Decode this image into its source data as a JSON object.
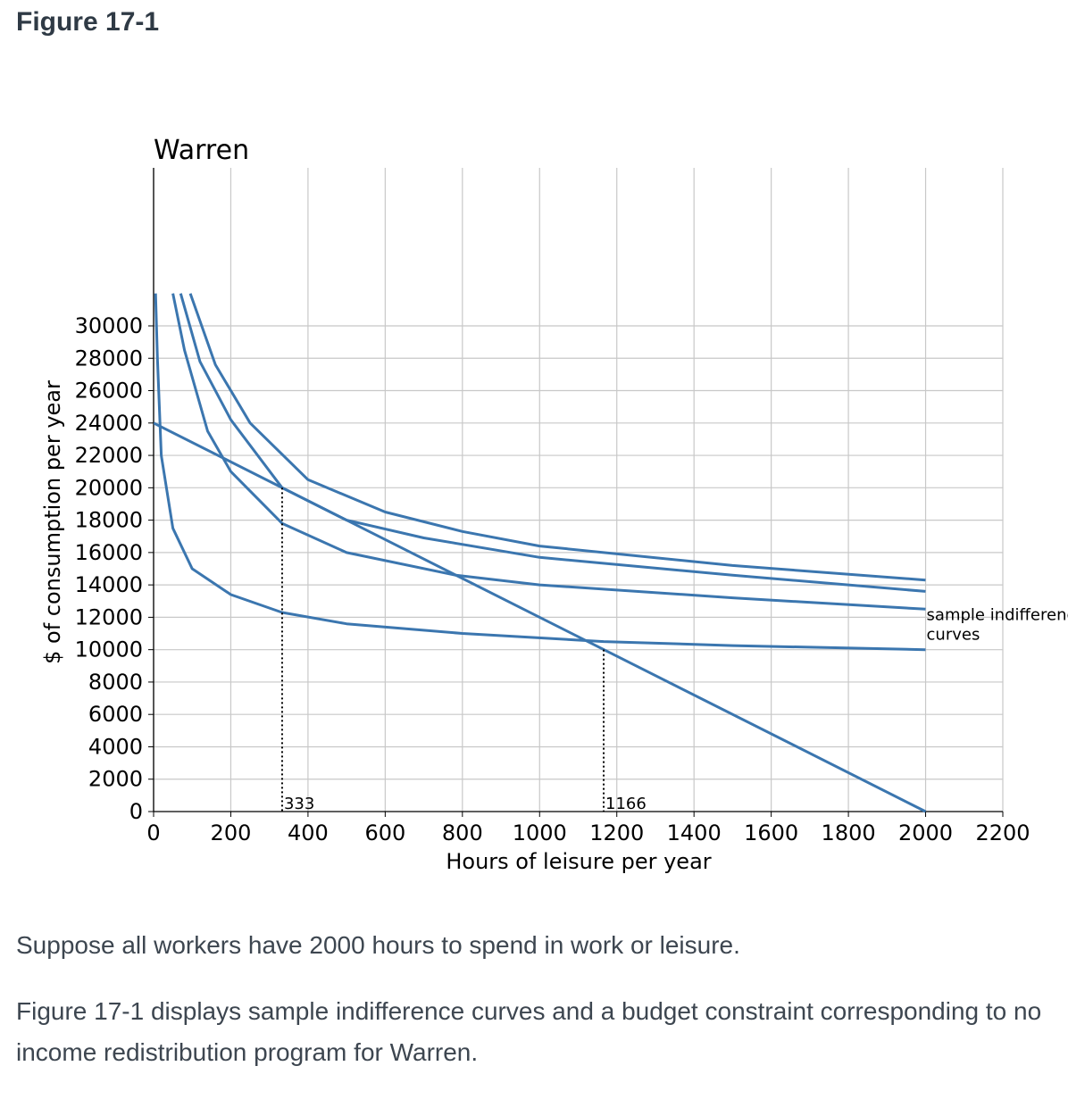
{
  "figure_title": "Figure 17-1",
  "paragraphs": [
    "Suppose all workers have 2000 hours to spend in work or leisure.",
    "Figure 17-1 displays sample indifference curves and a budget constraint corresponding to no income redistribution program for Warren."
  ],
  "colors": {
    "line": "#3b76af",
    "grid": "#c8c8c8",
    "axis": "#000000"
  },
  "chart_data": {
    "type": "line",
    "title": "Warren",
    "xlabel": "Hours of leisure per year",
    "ylabel": "$ of consumption per year",
    "xlim": [
      0,
      2200
    ],
    "ylim": [
      0,
      32000
    ],
    "xticks": [
      0,
      200,
      400,
      600,
      800,
      1000,
      1200,
      1400,
      1600,
      1800,
      2000,
      2200
    ],
    "yticks": [
      0,
      2000,
      4000,
      6000,
      8000,
      10000,
      12000,
      14000,
      16000,
      18000,
      20000,
      22000,
      24000,
      26000,
      28000,
      30000
    ],
    "grid": true,
    "budget_constraint": {
      "x": [
        0,
        2000
      ],
      "y": [
        24000,
        0
      ]
    },
    "indifference_curves": [
      {
        "min_x": 5,
        "points": [
          [
            5,
            32000
          ],
          [
            10,
            28000
          ],
          [
            20,
            22000
          ],
          [
            50,
            17500
          ],
          [
            100,
            15000
          ],
          [
            200,
            13400
          ],
          [
            333,
            12300
          ],
          [
            500,
            11600
          ],
          [
            800,
            11000
          ],
          [
            1166,
            10500
          ],
          [
            1500,
            10250
          ],
          [
            2000,
            10000
          ]
        ]
      },
      {
        "min_x": 50,
        "points": [
          [
            50,
            32000
          ],
          [
            80,
            28500
          ],
          [
            140,
            23500
          ],
          [
            200,
            21000
          ],
          [
            333,
            17800
          ],
          [
            500,
            16000
          ],
          [
            783,
            14600
          ],
          [
            1000,
            14000
          ],
          [
            1500,
            13200
          ],
          [
            2000,
            12500
          ]
        ]
      },
      {
        "min_x": 70,
        "points": [
          [
            70,
            32000
          ],
          [
            120,
            27800
          ],
          [
            200,
            24200
          ],
          [
            333,
            20000
          ],
          [
            500,
            18000
          ],
          [
            700,
            16900
          ],
          [
            1000,
            15700
          ],
          [
            1500,
            14600
          ],
          [
            2000,
            13600
          ]
        ]
      },
      {
        "min_x": 95,
        "points": [
          [
            95,
            32000
          ],
          [
            160,
            27600
          ],
          [
            250,
            24000
          ],
          [
            400,
            20500
          ],
          [
            600,
            18500
          ],
          [
            800,
            17300
          ],
          [
            1000,
            16400
          ],
          [
            1500,
            15200
          ],
          [
            2000,
            14300
          ]
        ]
      }
    ],
    "reference_lines": [
      {
        "x": 333,
        "y": 20000,
        "label": "333"
      },
      {
        "x": 1166,
        "y": 10000,
        "label": "1166"
      }
    ],
    "annotation": {
      "x": 2000,
      "y": 12500,
      "text": "sample indifference curves"
    }
  }
}
